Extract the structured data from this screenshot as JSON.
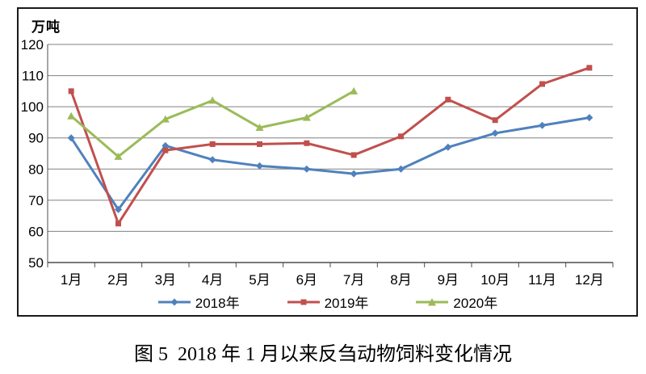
{
  "figure": {
    "unit_label": "万吨",
    "caption": "图 5  2018 年 1 月以来反刍动物饲料变化情况"
  },
  "chart_data": {
    "type": "line",
    "title": "图 5  2018 年 1 月以来反刍动物饲料变化情况",
    "ylabel": "万吨",
    "xlabel": "",
    "ylim": [
      50,
      120
    ],
    "ytick_step": 10,
    "grid": true,
    "legend_position": "bottom",
    "categories": [
      "1月",
      "2月",
      "3月",
      "4月",
      "5月",
      "6月",
      "7月",
      "8月",
      "9月",
      "10月",
      "11月",
      "12月"
    ],
    "series": [
      {
        "name": "2018年",
        "color": "#4F81BD",
        "marker": "diamond",
        "values": [
          90,
          67,
          87.5,
          83,
          81,
          80,
          78.5,
          80,
          87,
          91.5,
          94,
          96.5
        ]
      },
      {
        "name": "2019年",
        "color": "#C0504D",
        "marker": "square",
        "values": [
          105,
          62.5,
          86,
          88,
          88,
          88.3,
          84.5,
          90.5,
          102.3,
          95.7,
          107.3,
          112.5
        ]
      },
      {
        "name": "2020年",
        "color": "#9BBB59",
        "marker": "triangle",
        "values": [
          97,
          84,
          96,
          102,
          93.3,
          96.5,
          105,
          null,
          null,
          null,
          null,
          null
        ]
      }
    ],
    "colors": {
      "gridline": "#808080",
      "axis": "#4d4d4d",
      "text": "#000000"
    }
  }
}
